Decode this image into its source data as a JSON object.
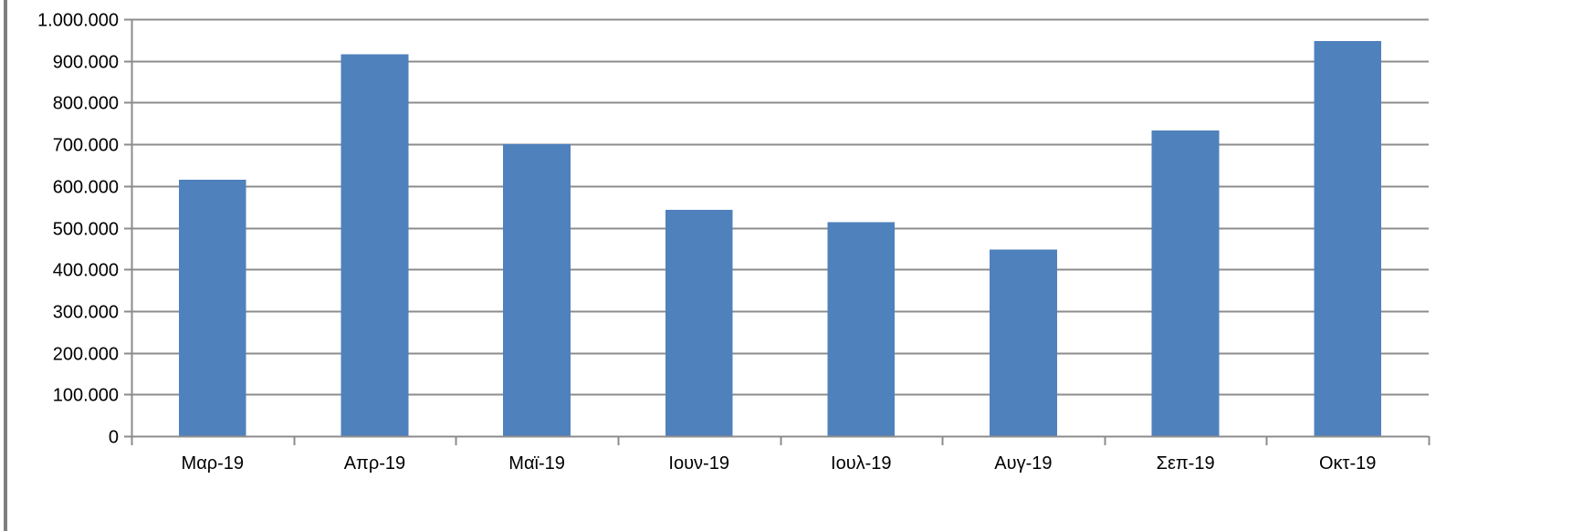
{
  "colors": {
    "bar": "#4f81bd",
    "grid": "#8c8c8c",
    "frame": "#7f7f7f",
    "text": "#000000",
    "background": "#ffffff"
  },
  "chart_data": {
    "type": "bar",
    "categories": [
      "Μαρ-19",
      "Απρ-19",
      "Μαϊ-19",
      "Ιουν-19",
      "Ιουλ-19",
      "Αυγ-19",
      "Σεπ-19",
      "Οκτ-19"
    ],
    "series": [
      {
        "values": [
          615000,
          916000,
          700000,
          543000,
          513000,
          448000,
          733000,
          947000
        ]
      }
    ],
    "ylim": [
      0,
      1000000
    ],
    "yticks": [
      0,
      100000,
      200000,
      300000,
      400000,
      500000,
      600000,
      700000,
      800000,
      900000,
      1000000
    ],
    "ytick_labels": [
      "0",
      "100.000",
      "200.000",
      "300.000",
      "400.000",
      "500.000",
      "600.000",
      "700.000",
      "800.000",
      "900.000",
      "1.000.000"
    ],
    "title": "",
    "xlabel": "",
    "ylabel": "",
    "grid": true,
    "legend": "none"
  }
}
